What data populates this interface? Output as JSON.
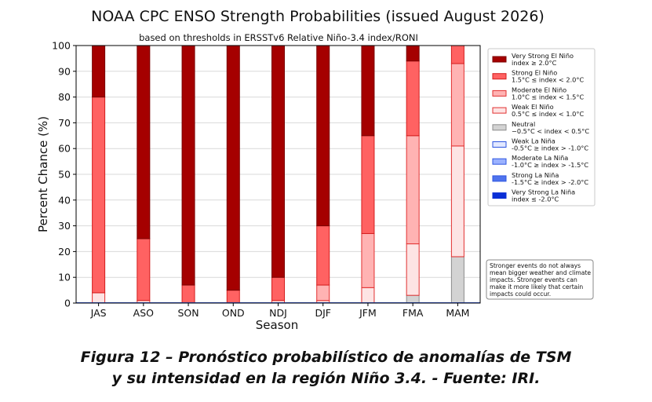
{
  "chart_data": {
    "type": "bar",
    "stacked": true,
    "title": "NOAA CPC ENSO Strength Probabilities (issued August 2026)",
    "subtitle": "based on thresholds in ERSSTv6 Relative Niño-3.4 index/RONI",
    "xlabel": "Season",
    "ylabel": "Percent Chance (%)",
    "ylim": [
      0,
      100
    ],
    "yticks": [
      0,
      10,
      20,
      30,
      40,
      50,
      60,
      70,
      80,
      90,
      100
    ],
    "grid": true,
    "legend_position": "right",
    "categories": [
      "JAS",
      "ASO",
      "SON",
      "OND",
      "NDJ",
      "DJF",
      "JFM",
      "FMA",
      "MAM"
    ],
    "series": [
      {
        "name": "Neutral",
        "line2": "−0.5°C < index < 0.5°C",
        "color": "#d3d3d3",
        "edge": "#8c8c8c",
        "values": [
          0,
          0,
          0,
          0,
          0,
          0,
          0,
          3,
          18
        ]
      },
      {
        "name": "Weak El Niño",
        "line2": "0.5°C ≤ index < 1.0°C",
        "color": "#fde4e4",
        "edge": "#e23030",
        "values": [
          4,
          1,
          0,
          0,
          1,
          1,
          6,
          20,
          43
        ]
      },
      {
        "name": "Moderate El Niño",
        "line2": "1.0°C ≤ index < 1.5°C",
        "color": "#ffb3b3",
        "edge": "#e23030",
        "values": [
          0,
          0,
          0,
          0,
          0,
          6,
          21,
          42,
          32
        ]
      },
      {
        "name": "Strong El Niño",
        "line2": "1.5°C ≤ index < 2.0°C",
        "color": "#ff6262",
        "edge": "#d41e1e",
        "values": [
          76,
          24,
          7,
          5,
          9,
          23,
          38,
          29,
          7
        ]
      },
      {
        "name": "Very Strong El Niño",
        "line2": "index ≥ 2.0°C",
        "color": "#a50000",
        "edge": "#7a0000",
        "values": [
          20,
          75,
          93,
          95,
          90,
          70,
          35,
          6,
          0
        ]
      }
    ],
    "legend": [
      {
        "line1": "Very Strong El Niño",
        "line2": "index ≥ 2.0°C",
        "color": "#a50000",
        "edge": "#7a0000"
      },
      {
        "line1": "Strong El Niño",
        "line2": "1.5°C ≤ index < 2.0°C",
        "color": "#ff6262",
        "edge": "#d41e1e"
      },
      {
        "line1": "Moderate El Niño",
        "line2": "1.0°C ≤ index < 1.5°C",
        "color": "#ffb3b3",
        "edge": "#e23030"
      },
      {
        "line1": "Weak El Niño",
        "line2": "0.5°C ≤ index < 1.0°C",
        "color": "#fde4e4",
        "edge": "#e23030"
      },
      {
        "line1": "Neutral",
        "line2": "−0.5°C < index < 0.5°C",
        "color": "#d3d3d3",
        "edge": "#8c8c8c"
      },
      {
        "line1": "Weak La Niña",
        "line2": "-0.5°C ≥ index > -1.0°C",
        "color": "#e2e8ff",
        "edge": "#2d55e0"
      },
      {
        "line1": "Moderate La Niña",
        "line2": "-1.0°C ≥ index > -1.5°C",
        "color": "#9bb2ff",
        "edge": "#2d55e0"
      },
      {
        "line1": "Strong La Niña",
        "line2": "-1.5°C ≥ index > -2.0°C",
        "color": "#4f73ee",
        "edge": "#2d55e0"
      },
      {
        "line1": "Very Strong La Niña",
        "line2": "index ≤ -2.0°C",
        "color": "#0a2fd6",
        "edge": "#0a2fd6"
      }
    ],
    "note_lines": [
      "Stronger events do not always",
      "mean bigger weather and climate",
      "impacts. Stronger events can",
      "make it more likely that certain",
      "impacts could occur."
    ]
  },
  "caption": {
    "line1": "Figura 12 – Pronóstico probabilístico de anomalías de TSM",
    "line2": "y su intensidad en la región Niño 3.4. - Fuente: IRI."
  }
}
